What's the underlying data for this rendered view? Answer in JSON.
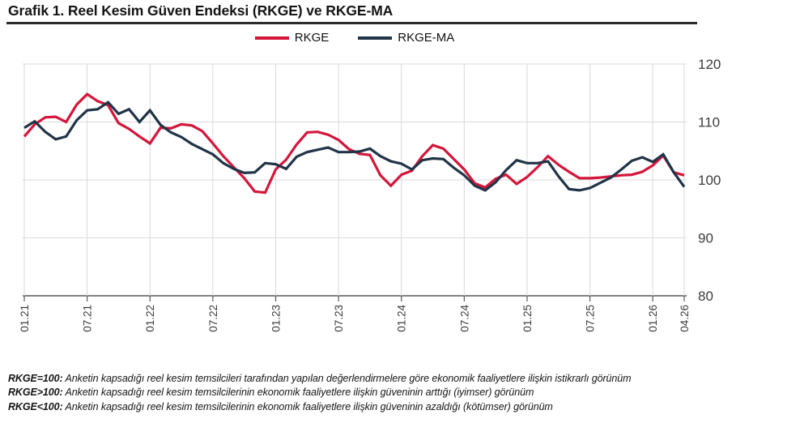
{
  "header": {
    "title": "Grafik 1. Reel Kesim Güven Endeksi (RKGE) ve RKGE-MA"
  },
  "legend": {
    "items": [
      {
        "label": "RKGE"
      },
      {
        "label": "RKGE-MA"
      }
    ]
  },
  "chart_data": {
    "type": "line",
    "title": "Grafik 1. Reel Kesim Güven Endeksi (RKGE) ve RKGE-MA",
    "legend_position": "top-center",
    "grid": true,
    "ylim": [
      80,
      120
    ],
    "yticks": [
      80,
      90,
      100,
      110,
      120
    ],
    "x_count": 64,
    "x_ticks": [
      {
        "index": 0,
        "label": "01.21"
      },
      {
        "index": 6,
        "label": "07.21"
      },
      {
        "index": 12,
        "label": "01.22"
      },
      {
        "index": 18,
        "label": "07.22"
      },
      {
        "index": 24,
        "label": "01.23"
      },
      {
        "index": 30,
        "label": "07.23"
      },
      {
        "index": 36,
        "label": "01.24"
      },
      {
        "index": 42,
        "label": "07.24"
      },
      {
        "index": 48,
        "label": "01.25"
      },
      {
        "index": 54,
        "label": "07.25"
      },
      {
        "index": 60,
        "label": "01.26"
      },
      {
        "index": 63,
        "label": "04.26"
      }
    ],
    "series": [
      {
        "name": "RKGE",
        "color": "#d4163a",
        "values": [
          107.5,
          109.6,
          110.8,
          110.9,
          110.0,
          113.0,
          114.8,
          113.6,
          112.9,
          109.8,
          108.8,
          107.5,
          106.3,
          109.0,
          108.9,
          109.6,
          109.4,
          108.4,
          106.3,
          104.1,
          102.2,
          100.3,
          98.0,
          97.8,
          101.8,
          103.5,
          106.1,
          108.2,
          108.3,
          107.8,
          106.9,
          105.3,
          104.5,
          104.3,
          100.8,
          99.0,
          100.9,
          101.6,
          104.1,
          106.0,
          105.4,
          103.6,
          101.8,
          99.4,
          98.7,
          100.2,
          100.9,
          99.3,
          100.5,
          102.2,
          104.1,
          102.6,
          101.4,
          100.3,
          100.3,
          100.4,
          100.6,
          100.8,
          100.9,
          101.4,
          102.5,
          104.2,
          101.3,
          100.8
        ]
      },
      {
        "name": "RKGE-MA",
        "color": "#203448",
        "values": [
          109.0,
          110.1,
          108.3,
          107.0,
          107.5,
          110.3,
          112.0,
          112.2,
          113.4,
          111.4,
          112.2,
          110.0,
          112.0,
          109.5,
          108.2,
          107.4,
          106.2,
          105.3,
          104.4,
          102.9,
          101.9,
          101.2,
          101.3,
          102.9,
          102.7,
          101.9,
          104.0,
          104.8,
          105.2,
          105.6,
          104.8,
          104.8,
          104.9,
          105.4,
          104.1,
          103.2,
          102.8,
          101.8,
          103.4,
          103.7,
          103.6,
          102.1,
          100.8,
          99.0,
          98.2,
          99.6,
          101.7,
          103.4,
          102.9,
          102.9,
          103.2,
          100.6,
          98.4,
          98.2,
          98.6,
          99.5,
          100.4,
          101.8,
          103.3,
          103.9,
          103.1,
          104.4,
          101.3,
          98.8
        ]
      }
    ]
  },
  "footnotes": {
    "line1": {
      "lead": "RKGE=100:",
      "text": " Anketin kapsadığı reel kesim temsilcileri tarafından yapılan değerlendirmelere göre ekonomik faaliyetlere ilişkin istikrarlı görünüm"
    },
    "line2": {
      "lead": "RKGE>100:",
      "text": " Anketin kapsadığı reel kesim temsilcilerinin ekonomik faaliyetlere ilişkin güveninin arttığı (iyimser) görünüm"
    },
    "line3": {
      "lead": "RKGE<100:",
      "text": " Anketin kapsadığı reel kesim temsilcilerinin ekonomik faaliyetlere ilişkin güveninin azaldığı (kötümser) görünüm"
    }
  },
  "colors": {
    "rkge_line": "#d4163a",
    "rkge_ma_line": "#203448",
    "gridline": "#d9d9d9",
    "axis": "#595959",
    "title_rule": "#2b2b2b"
  }
}
